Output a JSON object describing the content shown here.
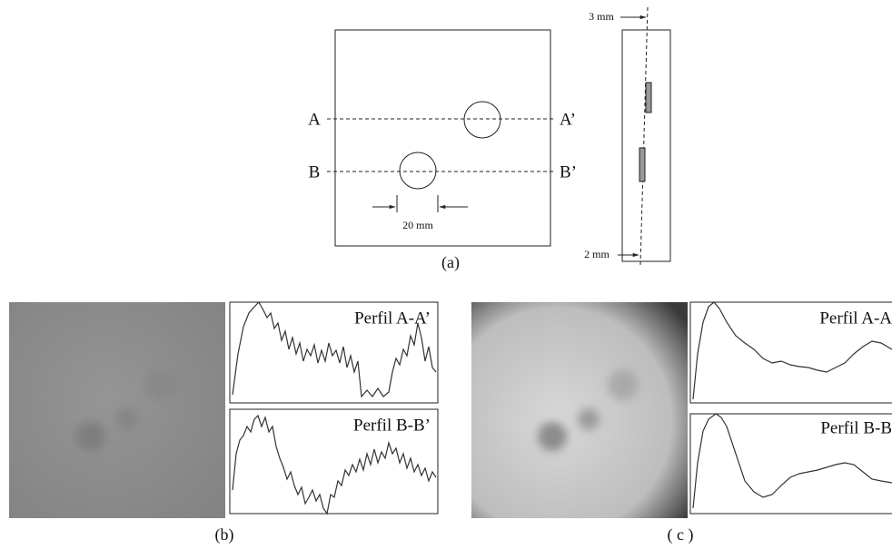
{
  "panel_a": {
    "front": {
      "label_a": "A",
      "label_a2": "A’",
      "label_b": "B",
      "label_b2": "B’",
      "dimension": "20 mm"
    },
    "side": {
      "top_dimension": "3 mm",
      "bottom_dimension": "2 mm"
    },
    "caption": "(a)"
  },
  "panel_b": {
    "profile_a": "Perfil A-A’",
    "profile_b": "Perfil B-B’",
    "caption": "(b)"
  },
  "panel_c": {
    "profile_a": "Perfil A-A",
    "profile_b": "Perfil B-B",
    "caption": "( c )"
  }
}
